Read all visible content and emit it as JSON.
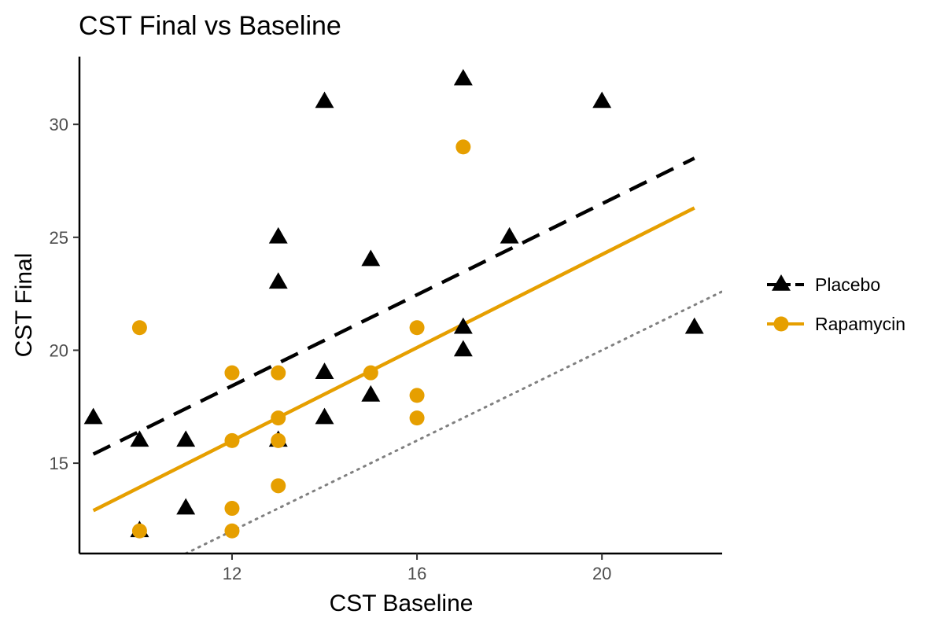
{
  "chart_data": {
    "type": "scatter",
    "title": "CST Final vs Baseline",
    "xlabel": "CST Baseline",
    "ylabel": "CST Final",
    "xlim": [
      8.7,
      22.6
    ],
    "ylim": [
      11.0,
      33.0
    ],
    "xticks": [
      12,
      16,
      20
    ],
    "yticks": [
      15,
      20,
      25,
      30
    ],
    "grid": false,
    "legend_position": "right",
    "series": [
      {
        "name": "Placebo",
        "color": "#000000",
        "marker": "triangle",
        "line_style": "dashed",
        "points": [
          [
            9,
            17
          ],
          [
            10,
            16
          ],
          [
            10,
            12
          ],
          [
            11,
            16
          ],
          [
            11,
            13
          ],
          [
            13,
            25
          ],
          [
            13,
            23
          ],
          [
            13,
            16
          ],
          [
            14,
            31
          ],
          [
            14,
            19
          ],
          [
            14,
            17
          ],
          [
            15,
            24
          ],
          [
            15,
            18
          ],
          [
            17,
            32
          ],
          [
            17,
            21
          ],
          [
            17,
            20
          ],
          [
            18,
            25
          ],
          [
            20,
            31
          ],
          [
            22,
            21
          ]
        ],
        "fit": {
          "x": [
            9,
            22
          ],
          "y": [
            15.4,
            28.5
          ]
        }
      },
      {
        "name": "Rapamycin",
        "color": "#E69F00",
        "marker": "circle",
        "line_style": "solid",
        "points": [
          [
            10,
            21
          ],
          [
            10,
            12
          ],
          [
            12,
            19
          ],
          [
            12,
            16
          ],
          [
            12,
            13
          ],
          [
            12,
            12
          ],
          [
            13,
            19
          ],
          [
            13,
            17
          ],
          [
            13,
            16
          ],
          [
            13,
            14
          ],
          [
            15,
            19
          ],
          [
            16,
            21
          ],
          [
            16,
            18
          ],
          [
            16,
            17
          ],
          [
            17,
            29
          ]
        ],
        "fit": {
          "x": [
            9,
            22
          ],
          "y": [
            12.9,
            26.3
          ]
        }
      }
    ],
    "reference_line": {
      "label": "y = x",
      "color": "#808080",
      "line_style": "dotted"
    }
  }
}
